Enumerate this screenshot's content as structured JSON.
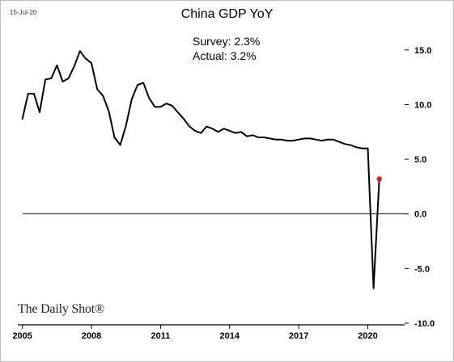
{
  "header": {
    "date": "15-Jul-20",
    "title": "China GDP YoY"
  },
  "annotation": {
    "survey": "Survey: 2.3%",
    "actual": "Actual:  3.2%"
  },
  "brand": "The Daily Shot®",
  "chart_data": {
    "type": "line",
    "title": "China GDP YoY",
    "xlabel": "",
    "ylabel": "",
    "xlim": [
      2004.8,
      2021.6
    ],
    "ylim": [
      -10.0,
      17.5
    ],
    "x_ticks": [
      {
        "value": 2005,
        "label": "2005"
      },
      {
        "value": 2008,
        "label": "2008"
      },
      {
        "value": 2011,
        "label": "2011"
      },
      {
        "value": 2014,
        "label": "2014"
      },
      {
        "value": 2017,
        "label": "2017"
      },
      {
        "value": 2020,
        "label": "2020"
      }
    ],
    "y_ticks": [
      {
        "value": 15,
        "label": "15.0"
      },
      {
        "value": 10,
        "label": "10.0"
      },
      {
        "value": 5,
        "label": "5.0"
      },
      {
        "value": 0,
        "label": "0.0"
      },
      {
        "value": -5,
        "label": "-5.0"
      },
      {
        "value": -10,
        "label": "-10.0"
      }
    ],
    "zero_line": 0,
    "grid": false,
    "series": [
      {
        "color": "#000000",
        "x": [
          2005.0,
          2005.25,
          2005.5,
          2005.75,
          2006.0,
          2006.25,
          2006.5,
          2006.75,
          2007.0,
          2007.25,
          2007.5,
          2007.75,
          2008.0,
          2008.25,
          2008.5,
          2008.75,
          2009.0,
          2009.25,
          2009.5,
          2009.75,
          2010.0,
          2010.25,
          2010.5,
          2010.75,
          2011.0,
          2011.25,
          2011.5,
          2011.75,
          2012.0,
          2012.25,
          2012.5,
          2012.75,
          2013.0,
          2013.25,
          2013.5,
          2013.75,
          2014.0,
          2014.25,
          2014.5,
          2014.75,
          2015.0,
          2015.25,
          2015.5,
          2015.75,
          2016.0,
          2016.25,
          2016.5,
          2016.75,
          2017.0,
          2017.25,
          2017.5,
          2017.75,
          2018.0,
          2018.25,
          2018.5,
          2018.75,
          2019.0,
          2019.25,
          2019.5,
          2019.75,
          2020.0,
          2020.25
        ],
        "y": [
          8.7,
          11.0,
          11.0,
          9.3,
          12.3,
          12.4,
          13.6,
          12.1,
          12.4,
          13.5,
          14.9,
          14.2,
          13.8,
          11.4,
          10.8,
          9.4,
          7.0,
          6.3,
          8.1,
          10.5,
          11.8,
          12.0,
          10.6,
          9.8,
          9.8,
          10.1,
          9.9,
          9.3,
          8.7,
          8.0,
          7.6,
          7.4,
          8.0,
          7.8,
          7.5,
          7.8,
          7.6,
          7.4,
          7.5,
          7.1,
          7.2,
          7.0,
          7.0,
          6.9,
          6.8,
          6.8,
          6.7,
          6.7,
          6.8,
          6.9,
          6.9,
          6.8,
          6.7,
          6.8,
          6.8,
          6.6,
          6.4,
          6.3,
          6.1,
          6.0,
          6.0,
          -6.8
        ]
      },
      {
        "x": [
          2020.25,
          2020.5
        ],
        "y": [
          -6.8,
          3.2
        ],
        "color": "#000000"
      }
    ],
    "highlight_point": {
      "x": 2020.5,
      "y": 3.2,
      "color": "#e8141c"
    }
  }
}
